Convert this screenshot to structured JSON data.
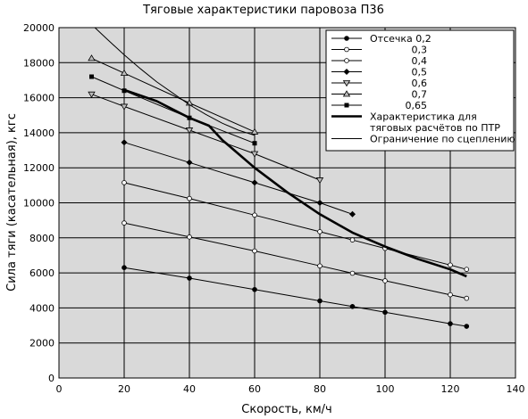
{
  "chart_data": {
    "type": "line",
    "title": "Тяговые характеристики паровоза П36",
    "xlabel": "Скорость, км/ч",
    "ylabel": "Сила тяги (касательная), кгс",
    "xlim": [
      0,
      140
    ],
    "ylim": [
      0,
      20000
    ],
    "xticks": [
      0,
      20,
      40,
      60,
      80,
      100,
      120,
      140
    ],
    "yticks": [
      0,
      2000,
      4000,
      6000,
      8000,
      10000,
      12000,
      14000,
      16000,
      18000,
      20000
    ],
    "grid": true,
    "background": "#d9d9d9",
    "legend_position": "top-right",
    "series": [
      {
        "name": "0,2",
        "legend_label": "Отсечка 0,2",
        "marker": "circle-filled",
        "x": [
          20,
          40,
          60,
          80,
          90,
          100,
          120,
          125
        ],
        "y": [
          6300,
          5700,
          5050,
          4400,
          4080,
          3750,
          3100,
          2950
        ]
      },
      {
        "name": "0,3",
        "legend_label": "0,3",
        "marker": "circle-open",
        "x": [
          20,
          40,
          60,
          80,
          90,
          100,
          120,
          125
        ],
        "y": [
          8850,
          8050,
          7250,
          6400,
          5980,
          5550,
          4750,
          4550
        ]
      },
      {
        "name": "0,4",
        "legend_label": "0,4",
        "marker": "circle-open",
        "x": [
          20,
          40,
          60,
          80,
          90,
          100,
          120,
          125
        ],
        "y": [
          11150,
          10250,
          9300,
          8350,
          7880,
          7400,
          6450,
          6200
        ]
      },
      {
        "name": "0,5",
        "legend_label": "0,5",
        "marker": "diamond-filled",
        "x": [
          20,
          40,
          60,
          80,
          90
        ],
        "y": [
          13450,
          12300,
          11150,
          10000,
          9350
        ]
      },
      {
        "name": "0,6",
        "legend_label": "0,6",
        "marker": "triangle-down-open",
        "x": [
          10,
          20,
          40,
          60,
          80
        ],
        "y": [
          16200,
          15500,
          14150,
          12800,
          11300
        ]
      },
      {
        "name": "0,7",
        "legend_label": "0,7",
        "marker": "triangle-up-open",
        "x": [
          10,
          20,
          40,
          60
        ],
        "y": [
          18250,
          17400,
          15700,
          14050
        ]
      },
      {
        "name": "0,65",
        "legend_label": "0,65",
        "marker": "square-filled",
        "x": [
          10,
          20,
          40,
          60
        ],
        "y": [
          17200,
          16400,
          14850,
          13400
        ]
      },
      {
        "name": "Характеристика для тяговых расчётов по ПТР",
        "legend_label": "Характеристика для тяговых расчётов по ПТР",
        "legend_lines": [
          "Характеристика для",
          "тяговых расчётов по ПТР"
        ],
        "marker": "none",
        "bold": true,
        "x": [
          20,
          30,
          40,
          46,
          50,
          55,
          60,
          70,
          80,
          90,
          100,
          110,
          120,
          125
        ],
        "y": [
          16450,
          15800,
          14850,
          14400,
          13600,
          12800,
          12000,
          10600,
          9350,
          8300,
          7500,
          6800,
          6200,
          5800
        ]
      },
      {
        "name": "Ограничение по сцеплению",
        "legend_label": "Ограничение по сцеплению",
        "marker": "none",
        "x": [
          11,
          15,
          20,
          25,
          30,
          35,
          40,
          45,
          50,
          55,
          60
        ],
        "y": [
          20000,
          19300,
          18450,
          17650,
          16900,
          16250,
          15600,
          15050,
          14550,
          14150,
          13850
        ]
      }
    ]
  }
}
